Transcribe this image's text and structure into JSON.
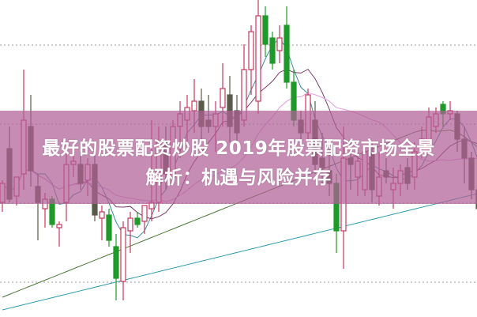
{
  "headline": {
    "line1": "最好的股票配资炒股 2019年股票配资市场全景",
    "line2": "解析：机遇与风险并存"
  },
  "colors": {
    "up": "#c8375a",
    "down_green": "#1f9a2a",
    "down_dark": "#5a5a4a",
    "banner": "#b06096",
    "grid": "#999999"
  },
  "chart_data": {
    "type": "candlestick",
    "title": "",
    "xlabel": "",
    "ylabel": "",
    "ylim": [
      0,
      100
    ],
    "grid": "dotted horizontal",
    "gridlines": [
      85.75,
      60.75,
      35.75,
      10.75
    ],
    "moving_averages": [
      {
        "period": 5,
        "color": "#3a8a9a"
      },
      {
        "period": 10,
        "color": "#7a3a6a"
      },
      {
        "period": 20,
        "color": "#e09ae0"
      },
      {
        "period": 30,
        "color": "#4a7a3a"
      },
      {
        "period": 60,
        "color": "#2a9aaa"
      }
    ],
    "candles_ohlc": [
      [
        36,
        43,
        33,
        42,
        "r"
      ],
      [
        53,
        60,
        36,
        37,
        "d"
      ],
      [
        38,
        44,
        35,
        44,
        "r"
      ],
      [
        45,
        78,
        40,
        62,
        "r"
      ],
      [
        60,
        70,
        41,
        46,
        "d"
      ],
      [
        41,
        45,
        24,
        36,
        "d"
      ],
      [
        34,
        39,
        28,
        37,
        "r"
      ],
      [
        37,
        38,
        28,
        29,
        "g"
      ],
      [
        28,
        30,
        22,
        29,
        "r"
      ],
      [
        36,
        52,
        30,
        48,
        "r"
      ],
      [
        48,
        52,
        44,
        49,
        "r"
      ],
      [
        48,
        52,
        40,
        42,
        "d"
      ],
      [
        43,
        50,
        38,
        48,
        "r"
      ],
      [
        48,
        55,
        30,
        32,
        "d"
      ],
      [
        31,
        35,
        24,
        33,
        "r"
      ],
      [
        32,
        34,
        22,
        24,
        "g"
      ],
      [
        22,
        26,
        5,
        12,
        "g"
      ],
      [
        11,
        30,
        5,
        28,
        "r"
      ],
      [
        27,
        33,
        20,
        31,
        "r"
      ],
      [
        31,
        33,
        28,
        29,
        "g"
      ],
      [
        30,
        35,
        26,
        35,
        "r"
      ],
      [
        34,
        62,
        30,
        36,
        "r"
      ],
      [
        36,
        60,
        33,
        55,
        "r"
      ],
      [
        55,
        60,
        40,
        45,
        "d"
      ],
      [
        44,
        62,
        43,
        60,
        "r"
      ],
      [
        60,
        68,
        50,
        64,
        "r"
      ],
      [
        62,
        70,
        55,
        66,
        "r"
      ],
      [
        65,
        75,
        58,
        68,
        "r"
      ],
      [
        68,
        72,
        55,
        60,
        "d"
      ],
      [
        62,
        70,
        58,
        60,
        "d"
      ],
      [
        60,
        68,
        52,
        64,
        "r"
      ],
      [
        66,
        80,
        60,
        72,
        "r"
      ],
      [
        70,
        76,
        55,
        60,
        "d"
      ],
      [
        65,
        70,
        55,
        58,
        "d"
      ],
      [
        62,
        86,
        60,
        78,
        "r"
      ],
      [
        78,
        92,
        70,
        90,
        "r"
      ],
      [
        68,
        100,
        64,
        95,
        "r"
      ],
      [
        95,
        98,
        82,
        86,
        "g"
      ],
      [
        88,
        90,
        78,
        80,
        "g"
      ],
      [
        84,
        92,
        80,
        88,
        "r"
      ],
      [
        92,
        98,
        72,
        74,
        "g"
      ],
      [
        74,
        78,
        60,
        62,
        "g"
      ],
      [
        62,
        65,
        55,
        58,
        "d"
      ],
      [
        58,
        72,
        56,
        70,
        "r"
      ],
      [
        62,
        68,
        45,
        48,
        "d"
      ],
      [
        50,
        58,
        42,
        47,
        "d"
      ],
      [
        46,
        52,
        38,
        42,
        "d"
      ],
      [
        42,
        45,
        20,
        27,
        "g"
      ],
      [
        27,
        60,
        15,
        50,
        "r"
      ],
      [
        50,
        56,
        40,
        48,
        "d"
      ],
      [
        44,
        52,
        38,
        49,
        "r"
      ],
      [
        40,
        54,
        38,
        52,
        "r"
      ],
      [
        52,
        55,
        36,
        40,
        "d"
      ],
      [
        38,
        52,
        35,
        44,
        "r"
      ],
      [
        46,
        50,
        42,
        44,
        "d"
      ],
      [
        40,
        47,
        34,
        42,
        "r"
      ],
      [
        42,
        48,
        38,
        46,
        "r"
      ],
      [
        47,
        50,
        40,
        42,
        "d"
      ],
      [
        44,
        55,
        40,
        52,
        "r"
      ],
      [
        54,
        60,
        50,
        56,
        "r"
      ],
      [
        54,
        66,
        52,
        63,
        "r"
      ],
      [
        60,
        66,
        58,
        64,
        "r"
      ],
      [
        67,
        68,
        60,
        64,
        "g"
      ],
      [
        64,
        68,
        62,
        65,
        "r"
      ],
      [
        64,
        65,
        52,
        56,
        "d"
      ],
      [
        56,
        60,
        42,
        50,
        "d"
      ],
      [
        50,
        52,
        37,
        40,
        "d"
      ],
      [
        40,
        44,
        30,
        34,
        "d"
      ]
    ]
  }
}
